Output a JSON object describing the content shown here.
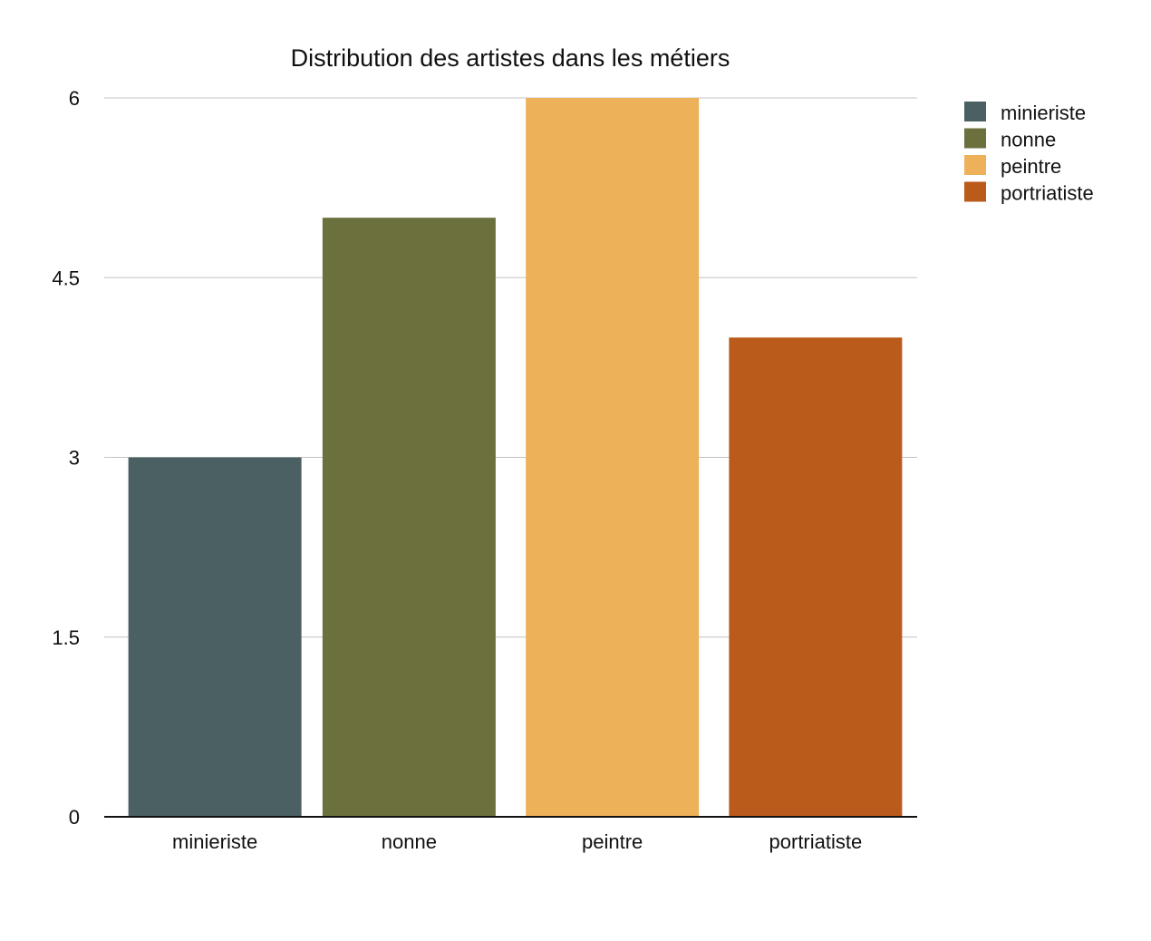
{
  "chart_data": {
    "type": "bar",
    "title": "Distribution des artistes dans les métiers",
    "categories": [
      "minieriste",
      "nonne",
      "peintre",
      "portriatiste"
    ],
    "values": [
      3,
      5,
      6,
      4
    ],
    "colors": [
      "#4b6063",
      "#6c703d",
      "#edb15a",
      "#bb5b1b"
    ],
    "xlabel": "",
    "ylabel": "",
    "ylim": [
      0,
      6
    ],
    "yticks": [
      "0",
      "1.5",
      "3",
      "4.5",
      "6"
    ],
    "grid": true,
    "legend": {
      "position": "top-right",
      "entries": [
        "minieriste",
        "nonne",
        "peintre",
        "portriatiste"
      ]
    }
  }
}
